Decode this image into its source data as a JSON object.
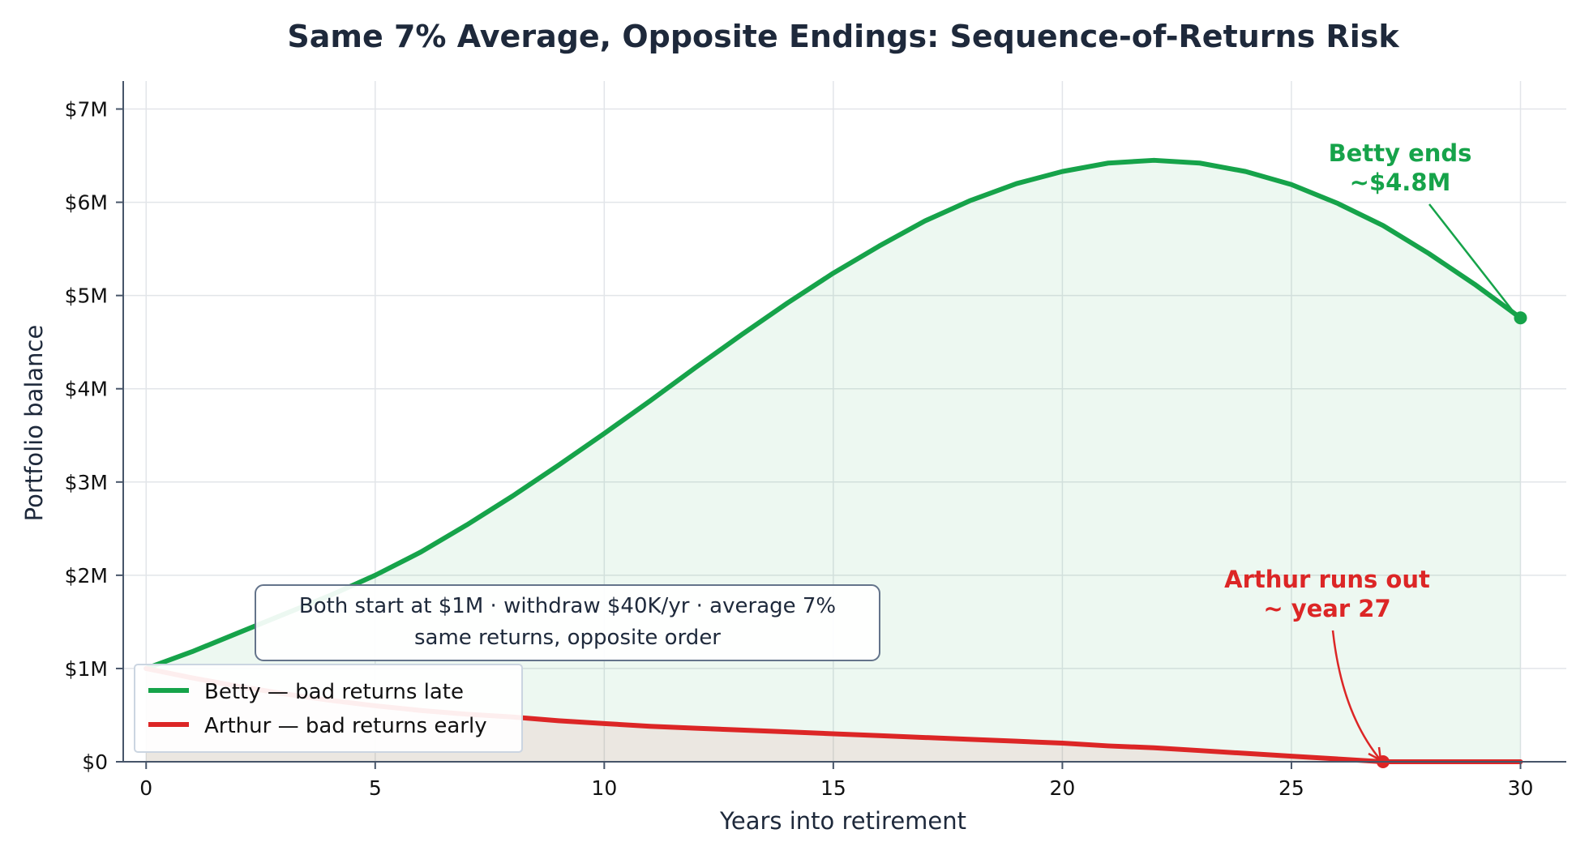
{
  "chart_data": {
    "type": "line",
    "title": "Same 7% Average, Opposite Endings: Sequence-of-Returns Risk",
    "xlabel": "Years into retirement",
    "ylabel": "Portfolio balance",
    "xlim": [
      -0.5,
      31
    ],
    "ylim": [
      0,
      7.3
    ],
    "x_ticks": [
      0,
      5,
      10,
      15,
      20,
      25,
      30
    ],
    "y_ticks": [
      0,
      1,
      2,
      3,
      4,
      5,
      6,
      7
    ],
    "y_tick_labels": [
      "$0",
      "$1M",
      "$2M",
      "$3M",
      "$4M",
      "$5M",
      "$6M",
      "$7M"
    ],
    "grid": true,
    "legend_position": "lower-left",
    "x": [
      0,
      1,
      2,
      3,
      4,
      5,
      6,
      7,
      8,
      9,
      10,
      11,
      12,
      13,
      14,
      15,
      16,
      17,
      18,
      19,
      20,
      21,
      22,
      23,
      24,
      25,
      26,
      27,
      28,
      29,
      30
    ],
    "series": [
      {
        "name": "Betty — bad returns late",
        "color": "#16a34a",
        "values": [
          1.0,
          1.18,
          1.38,
          1.58,
          1.78,
          2.0,
          2.25,
          2.54,
          2.85,
          3.18,
          3.52,
          3.87,
          4.23,
          4.58,
          4.92,
          5.24,
          5.53,
          5.8,
          6.02,
          6.2,
          6.33,
          6.42,
          6.45,
          6.42,
          6.33,
          6.19,
          5.99,
          5.75,
          5.45,
          5.12,
          4.76
        ]
      },
      {
        "name": "Arthur — bad returns early",
        "color": "#dc2626",
        "values": [
          1.0,
          0.9,
          0.81,
          0.73,
          0.66,
          0.6,
          0.55,
          0.51,
          0.48,
          0.44,
          0.41,
          0.38,
          0.36,
          0.34,
          0.32,
          0.3,
          0.28,
          0.26,
          0.24,
          0.22,
          0.2,
          0.17,
          0.15,
          0.12,
          0.09,
          0.06,
          0.03,
          0.0,
          0.0,
          0.0,
          0.0
        ]
      }
    ],
    "annotations": [
      {
        "id": "betty",
        "text_line1": "Betty ends",
        "text_line2": "~$4.8M",
        "point": [
          30,
          4.76
        ],
        "color": "#16a34a"
      },
      {
        "id": "arthur",
        "text_line1": "Arthur runs out",
        "text_line2": "~ year 27",
        "point": [
          27,
          0.0
        ],
        "color": "#dc2626"
      }
    ],
    "info_box": {
      "line1": "Both start at $1M  ·  withdraw $40K/yr  ·  average 7%",
      "line2": "same returns, opposite order"
    }
  }
}
